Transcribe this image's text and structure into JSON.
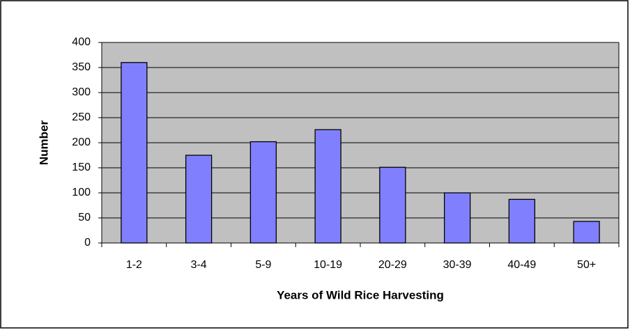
{
  "chart_data": {
    "type": "bar",
    "x_label": "Years of Wild Rice Harvesting",
    "y_label": "Number",
    "categories": [
      "1-2",
      "3-4",
      "5-9",
      "10-19",
      "20-29",
      "30-39",
      "40-49",
      "50+"
    ],
    "values": [
      360,
      175,
      202,
      226,
      151,
      100,
      87,
      43
    ],
    "color": "#8080ff",
    "ylim": [
      0,
      400
    ],
    "yticks": [
      0,
      50,
      100,
      150,
      200,
      250,
      300,
      350,
      400
    ],
    "grid": true
  }
}
